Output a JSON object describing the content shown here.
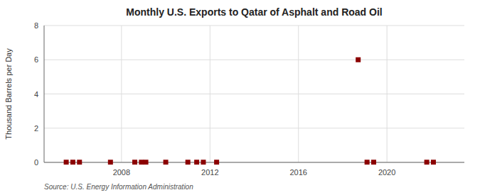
{
  "chart_data": {
    "type": "scatter",
    "title": "Monthly U.S. Exports to Qatar of Asphalt and Road Oil",
    "ylabel": "Thousand Barrels per Day",
    "annotations": [
      "Source: U.S. Energy Information Administration"
    ],
    "x": [
      2005.5,
      2005.8,
      2006.1,
      2007.5,
      2008.6,
      2008.9,
      2009.1,
      2010.0,
      2011.0,
      2011.4,
      2011.7,
      2012.3,
      2018.7,
      2019.1,
      2019.4,
      2021.8,
      2022.1
    ],
    "values": [
      0.01,
      0.01,
      0.01,
      0.01,
      0.01,
      0.01,
      0.01,
      0.01,
      0.01,
      0.01,
      0.01,
      0.01,
      6.0,
      0.01,
      0.01,
      0.01,
      0.01
    ],
    "color": "#8b0000",
    "marker": "square",
    "xlim": [
      2004.5,
      2023.5
    ],
    "xticks": [
      2008,
      2012,
      2016,
      2020
    ],
    "ylim": [
      0,
      8
    ],
    "yticks": [
      0,
      2,
      4,
      6,
      8
    ],
    "grid": true
  }
}
